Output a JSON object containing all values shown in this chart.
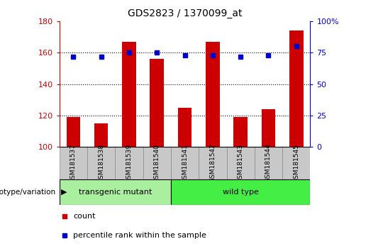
{
  "title": "GDS2823 / 1370099_at",
  "samples": [
    "GSM181537",
    "GSM181538",
    "GSM181539",
    "GSM181540",
    "GSM181541",
    "GSM181542",
    "GSM181543",
    "GSM181544",
    "GSM181545"
  ],
  "counts": [
    119,
    115,
    167,
    156,
    125,
    167,
    119,
    124,
    174
  ],
  "percentile_ranks": [
    72,
    72,
    75,
    75,
    73,
    73,
    72,
    73,
    80
  ],
  "groups": [
    {
      "label": "transgenic mutant",
      "start": 0,
      "end": 4,
      "color": "#90EE90"
    },
    {
      "label": "wild type",
      "start": 4,
      "end": 9,
      "color": "#44DD44"
    }
  ],
  "bar_color": "#CC0000",
  "dot_color": "#0000CC",
  "left_ylim": [
    100,
    180
  ],
  "left_yticks": [
    100,
    120,
    140,
    160,
    180
  ],
  "right_ylim": [
    0,
    100
  ],
  "right_yticks": [
    0,
    25,
    50,
    75,
    100
  ],
  "right_yticklabels": [
    "0",
    "25",
    "50",
    "75",
    "100%"
  ],
  "grid_values": [
    120,
    140,
    160
  ],
  "bar_color_hex": "#CC0000",
  "dot_color_hex": "#0000CC",
  "tick_label_area_color": "#C8C8C8",
  "transgenic_color": "#AAEEA0",
  "wildtype_color": "#44EE44",
  "genotype_label": "genotype/variation",
  "legend_count_label": "count",
  "legend_pct_label": "percentile rank within the sample"
}
